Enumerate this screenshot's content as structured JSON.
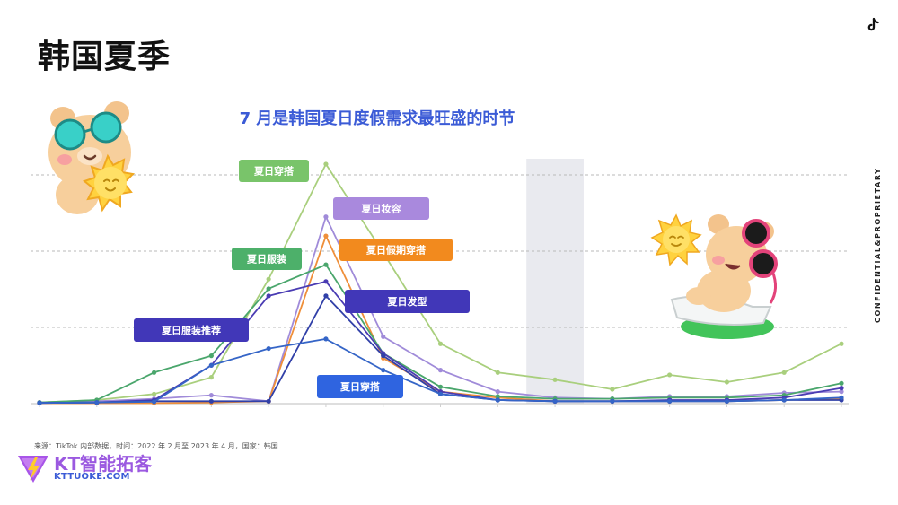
{
  "header": {
    "title": "韩国夏季",
    "side_label": "CONFIDENTIAL&PROPRIETARY",
    "platform_icon": "tiktok-icon"
  },
  "chart_data": {
    "type": "line",
    "title": "7 月是韩国夏日度假需求最旺盛的时节",
    "xlabel": "",
    "ylabel": "",
    "ylim": [
      0,
      100
    ],
    "x": [
      1,
      2,
      3,
      4,
      5,
      6,
      7,
      8,
      9,
      10,
      11,
      12,
      13,
      14,
      15
    ],
    "highlight_x": 10,
    "grid": true,
    "series": [
      {
        "name": "夏日穿搭",
        "color": "#a9cf7d",
        "values": [
          0.5,
          1.5,
          4,
          11,
          52,
          100,
          63,
          25,
          13,
          10,
          6,
          12,
          9,
          13,
          25
        ]
      },
      {
        "name": "夏日妆容",
        "color": "#a08bd9",
        "values": [
          0.5,
          1.0,
          2.0,
          3.5,
          1,
          78,
          28,
          14,
          5,
          2.5,
          2,
          3,
          3,
          4.5,
          5
        ]
      },
      {
        "name": "夏日假期穿搭",
        "color": "#ef8f3a",
        "values": [
          0.2,
          0.2,
          0.2,
          0.5,
          1,
          70,
          19,
          5,
          2.5,
          1,
          1,
          1,
          1,
          1.5,
          2
        ]
      },
      {
        "name": "夏日服装",
        "color": "#4aa66c",
        "values": [
          0.5,
          1.5,
          13,
          20,
          48,
          58,
          21,
          7,
          3,
          2,
          2,
          2.5,
          2.5,
          3.5,
          8.5
        ]
      },
      {
        "name": "夏日发型",
        "color": "#4a3cb3",
        "values": [
          0.3,
          0.5,
          1.5,
          16,
          45,
          51,
          21,
          5,
          1.5,
          1,
          1,
          1.5,
          1.5,
          2.5,
          6.5
        ]
      },
      {
        "name": "夏日服装推荐",
        "color": "#3140a8",
        "values": [
          0.3,
          0.5,
          1,
          1,
          1,
          45,
          20,
          4,
          1.5,
          1,
          1,
          1,
          1,
          1.5,
          1.5
        ]
      },
      {
        "name": "夏日穿搭",
        "color": "#3565c7",
        "values": [
          0.3,
          0.5,
          0.8,
          16,
          23,
          27,
          14,
          4,
          1.5,
          1,
          1,
          1,
          1,
          1.5,
          2.5
        ]
      }
    ],
    "callouts": [
      {
        "series_index": 0,
        "text": "夏日穿搭",
        "bg": "#79c46a",
        "fg": "#ffffff"
      },
      {
        "series_index": 1,
        "text": "夏日妆容",
        "bg": "#a989dd",
        "fg": "#ffffff"
      },
      {
        "series_index": 2,
        "text": "夏日假期穿搭",
        "bg": "#f28a1e",
        "fg": "#ffffff"
      },
      {
        "series_index": 3,
        "text": "夏日服装",
        "bg": "#4db06a",
        "fg": "#ffffff"
      },
      {
        "series_index": 4,
        "text": "夏日发型",
        "bg": "#4137b8",
        "fg": "#ffffff"
      },
      {
        "series_index": 5,
        "text": "夏日服装推荐",
        "bg": "#4137b8",
        "fg": "#ffffff"
      },
      {
        "series_index": 6,
        "text": "夏日穿搭",
        "bg": "#2f64e0",
        "fg": "#ffffff"
      }
    ]
  },
  "footer": {
    "source": "来源：TikTok 内部数据，时间：2022 年 2 月至 2023 年 4 月，国家：韩国",
    "brand_name": "KT智能拓客",
    "brand_url": "KTTUOKE.COM"
  },
  "colors": {
    "accent": "#3b5bd6",
    "brand_purple": "#9b59e0",
    "highlight_band": "#e9eaef",
    "grid": "#b9b9b9"
  },
  "decorations": [
    "bear-with-goggles-and-sun-icon",
    "bear-in-lounge-chair-icon",
    "sun-icon"
  ]
}
